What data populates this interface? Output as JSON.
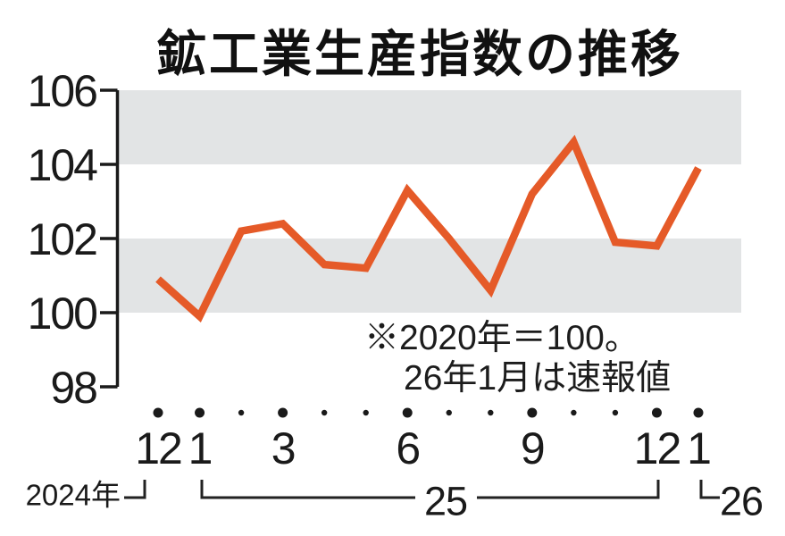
{
  "title": "鉱工業生産指数の推移",
  "note": {
    "line1": "※2020年＝100。",
    "line2": "26年1月は速報値"
  },
  "colors": {
    "line": "#e55a28",
    "band": "#e2e4e5",
    "axis": "#1a1a1a",
    "text": "#111111"
  },
  "x_axis": {
    "month_labels": [
      {
        "index": 0,
        "text": "12"
      },
      {
        "index": 1,
        "text": "1"
      },
      {
        "index": 3,
        "text": "3"
      },
      {
        "index": 6,
        "text": "6"
      },
      {
        "index": 9,
        "text": "9"
      },
      {
        "index": 12,
        "text": "12"
      },
      {
        "index": 13,
        "text": "1"
      }
    ],
    "year_2024_label": "2024年",
    "year_25_label": "25",
    "year_26_label": "26"
  },
  "chart_data": {
    "type": "line",
    "title": "鉱工業生産指数の推移",
    "x": [
      "2024-12",
      "2025-01",
      "2025-02",
      "2025-03",
      "2025-04",
      "2025-05",
      "2025-06",
      "2025-07",
      "2025-08",
      "2025-09",
      "2025-10",
      "2025-11",
      "2025-12",
      "2026-01"
    ],
    "values": [
      100.9,
      99.9,
      102.2,
      102.4,
      101.3,
      101.2,
      103.3,
      102.0,
      100.6,
      103.2,
      104.6,
      101.9,
      101.8,
      103.9
    ],
    "ylim": [
      98,
      106
    ],
    "yticks": [
      98,
      100,
      102,
      104,
      106
    ],
    "shaded_bands": [
      [
        100,
        102
      ],
      [
        104,
        106
      ]
    ],
    "major_dot_indices": [
      0,
      1,
      3,
      6,
      9,
      12,
      13
    ],
    "xlabel": "",
    "ylabel": "",
    "legend": "none",
    "grid": "off",
    "note": "※2020年＝100。26年1月は速報値"
  }
}
